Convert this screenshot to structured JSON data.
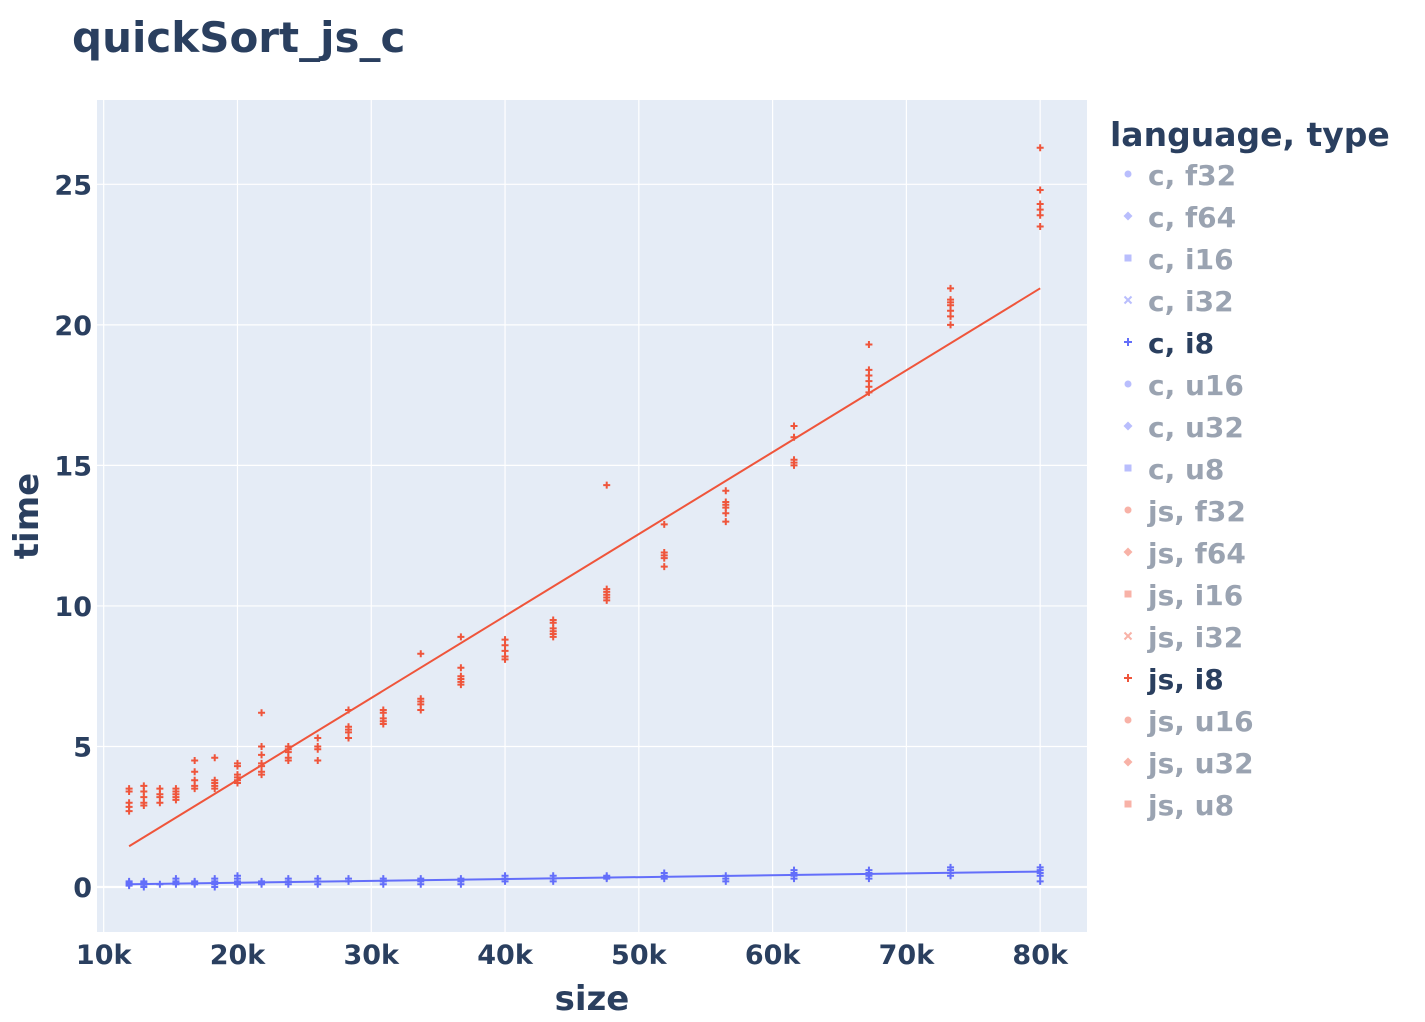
{
  "chart_data": {
    "type": "scatter",
    "title": "quickSort_js_c",
    "xlabel": "size",
    "ylabel": "time",
    "xlim": [
      9500,
      83500
    ],
    "ylim": [
      -1.6,
      28
    ],
    "x_ticks": [
      {
        "value": 10000,
        "label": "10k"
      },
      {
        "value": 20000,
        "label": "20k"
      },
      {
        "value": 30000,
        "label": "30k"
      },
      {
        "value": 40000,
        "label": "40k"
      },
      {
        "value": 50000,
        "label": "50k"
      },
      {
        "value": 60000,
        "label": "60k"
      },
      {
        "value": 70000,
        "label": "70k"
      },
      {
        "value": 80000,
        "label": "80k"
      }
    ],
    "y_ticks": [
      {
        "value": 0,
        "label": "0"
      },
      {
        "value": 5,
        "label": "5"
      },
      {
        "value": 10,
        "label": "10"
      },
      {
        "value": 15,
        "label": "15"
      },
      {
        "value": 20,
        "label": "20"
      },
      {
        "value": 25,
        "label": "25"
      }
    ],
    "grid": true,
    "legend": {
      "title": "language, type",
      "position": "right",
      "items": [
        {
          "label": "c, f32",
          "color": "#636efa",
          "symbol": "circle",
          "active": false
        },
        {
          "label": "c, f64",
          "color": "#636efa",
          "symbol": "diamond",
          "active": false
        },
        {
          "label": "c, i16",
          "color": "#636efa",
          "symbol": "square",
          "active": false
        },
        {
          "label": "c, i32",
          "color": "#636efa",
          "symbol": "x",
          "active": false
        },
        {
          "label": "c, i8",
          "color": "#636efa",
          "symbol": "cross",
          "active": true
        },
        {
          "label": "c, u16",
          "color": "#636efa",
          "symbol": "circle",
          "active": false
        },
        {
          "label": "c, u32",
          "color": "#636efa",
          "symbol": "diamond",
          "active": false
        },
        {
          "label": "c, u8",
          "color": "#636efa",
          "symbol": "square",
          "active": false
        },
        {
          "label": "js, f32",
          "color": "#ef553b",
          "symbol": "circle",
          "active": false
        },
        {
          "label": "js, f64",
          "color": "#ef553b",
          "symbol": "diamond",
          "active": false
        },
        {
          "label": "js, i16",
          "color": "#ef553b",
          "symbol": "square",
          "active": false
        },
        {
          "label": "js, i32",
          "color": "#ef553b",
          "symbol": "x",
          "active": false
        },
        {
          "label": "js, i8",
          "color": "#ef553b",
          "symbol": "cross",
          "active": true
        },
        {
          "label": "js, u16",
          "color": "#ef553b",
          "symbol": "circle",
          "active": false
        },
        {
          "label": "js, u32",
          "color": "#ef553b",
          "symbol": "diamond",
          "active": false
        },
        {
          "label": "js, u8",
          "color": "#ef553b",
          "symbol": "square",
          "active": false
        }
      ]
    },
    "series": [
      {
        "name": "c, i8",
        "color": "#636efa",
        "symbol": "cross",
        "points": [
          [
            11900,
            0.05
          ],
          [
            11900,
            0.1
          ],
          [
            11900,
            0.15
          ],
          [
            11900,
            0.2
          ],
          [
            13000,
            0.0
          ],
          [
            13000,
            0.08
          ],
          [
            13000,
            0.15
          ],
          [
            13000,
            0.2
          ],
          [
            14200,
            0.1
          ],
          [
            15400,
            0.1
          ],
          [
            15400,
            0.15
          ],
          [
            15400,
            0.2
          ],
          [
            15400,
            0.3
          ],
          [
            16800,
            0.1
          ],
          [
            16800,
            0.15
          ],
          [
            16800,
            0.2
          ],
          [
            18300,
            0.0
          ],
          [
            18300,
            0.1
          ],
          [
            18300,
            0.2
          ],
          [
            18300,
            0.3
          ],
          [
            20000,
            0.1
          ],
          [
            20000,
            0.2
          ],
          [
            20000,
            0.3
          ],
          [
            20000,
            0.4
          ],
          [
            21800,
            0.1
          ],
          [
            21800,
            0.15
          ],
          [
            21800,
            0.2
          ],
          [
            23800,
            0.1
          ],
          [
            23800,
            0.2
          ],
          [
            23800,
            0.3
          ],
          [
            26000,
            0.1
          ],
          [
            26000,
            0.2
          ],
          [
            26000,
            0.3
          ],
          [
            28300,
            0.2
          ],
          [
            28300,
            0.3
          ],
          [
            30900,
            0.1
          ],
          [
            30900,
            0.2
          ],
          [
            30900,
            0.3
          ],
          [
            33700,
            0.1
          ],
          [
            33700,
            0.2
          ],
          [
            33700,
            0.3
          ],
          [
            36700,
            0.1
          ],
          [
            36700,
            0.2
          ],
          [
            36700,
            0.3
          ],
          [
            40000,
            0.2
          ],
          [
            40000,
            0.3
          ],
          [
            40000,
            0.4
          ],
          [
            43600,
            0.2
          ],
          [
            43600,
            0.3
          ],
          [
            43600,
            0.4
          ],
          [
            47600,
            0.3
          ],
          [
            47600,
            0.35
          ],
          [
            47600,
            0.4
          ],
          [
            51900,
            0.3
          ],
          [
            51900,
            0.4
          ],
          [
            51900,
            0.5
          ],
          [
            56500,
            0.2
          ],
          [
            56500,
            0.3
          ],
          [
            56500,
            0.4
          ],
          [
            61600,
            0.3
          ],
          [
            61600,
            0.4
          ],
          [
            61600,
            0.5
          ],
          [
            61600,
            0.6
          ],
          [
            67200,
            0.3
          ],
          [
            67200,
            0.4
          ],
          [
            67200,
            0.5
          ],
          [
            67200,
            0.6
          ],
          [
            73300,
            0.4
          ],
          [
            73300,
            0.5
          ],
          [
            73300,
            0.6
          ],
          [
            73300,
            0.7
          ],
          [
            80000,
            0.2
          ],
          [
            80000,
            0.4
          ],
          [
            80000,
            0.5
          ],
          [
            80000,
            0.6
          ],
          [
            80000,
            0.7
          ]
        ],
        "trend": [
          [
            11900,
            0.1
          ],
          [
            80000,
            0.55
          ]
        ]
      },
      {
        "name": "js, i8",
        "color": "#ef553b",
        "symbol": "cross",
        "points": [
          [
            11900,
            2.7
          ],
          [
            11900,
            2.85
          ],
          [
            11900,
            3.0
          ],
          [
            11900,
            3.4
          ],
          [
            11900,
            3.5
          ],
          [
            13000,
            2.9
          ],
          [
            13000,
            3.0
          ],
          [
            13000,
            3.2
          ],
          [
            13000,
            3.4
          ],
          [
            13000,
            3.6
          ],
          [
            14200,
            3.0
          ],
          [
            14200,
            3.2
          ],
          [
            14200,
            3.3
          ],
          [
            14200,
            3.5
          ],
          [
            15400,
            3.1
          ],
          [
            15400,
            3.2
          ],
          [
            15400,
            3.3
          ],
          [
            15400,
            3.4
          ],
          [
            15400,
            3.5
          ],
          [
            16800,
            3.5
          ],
          [
            16800,
            3.6
          ],
          [
            16800,
            3.8
          ],
          [
            16800,
            4.1
          ],
          [
            16800,
            4.5
          ],
          [
            18300,
            3.5
          ],
          [
            18300,
            3.6
          ],
          [
            18300,
            3.7
          ],
          [
            18300,
            3.8
          ],
          [
            18300,
            4.6
          ],
          [
            20000,
            3.7
          ],
          [
            20000,
            3.8
          ],
          [
            20000,
            3.9
          ],
          [
            20000,
            4.0
          ],
          [
            20000,
            4.3
          ],
          [
            20000,
            4.4
          ],
          [
            21800,
            4.0
          ],
          [
            21800,
            4.1
          ],
          [
            21800,
            4.3
          ],
          [
            21800,
            4.4
          ],
          [
            21800,
            4.7
          ],
          [
            21800,
            5.0
          ],
          [
            21800,
            6.2
          ],
          [
            23800,
            4.5
          ],
          [
            23800,
            4.6
          ],
          [
            23800,
            4.8
          ],
          [
            23800,
            4.9
          ],
          [
            23800,
            5.0
          ],
          [
            26000,
            4.5
          ],
          [
            26000,
            4.9
          ],
          [
            26000,
            5.0
          ],
          [
            26000,
            5.3
          ],
          [
            28300,
            5.3
          ],
          [
            28300,
            5.5
          ],
          [
            28300,
            5.6
          ],
          [
            28300,
            5.7
          ],
          [
            28300,
            6.3
          ],
          [
            30900,
            5.8
          ],
          [
            30900,
            5.9
          ],
          [
            30900,
            6.0
          ],
          [
            30900,
            6.2
          ],
          [
            30900,
            6.3
          ],
          [
            33700,
            6.3
          ],
          [
            33700,
            6.5
          ],
          [
            33700,
            6.6
          ],
          [
            33700,
            6.7
          ],
          [
            33700,
            8.3
          ],
          [
            36700,
            7.2
          ],
          [
            36700,
            7.3
          ],
          [
            36700,
            7.4
          ],
          [
            36700,
            7.5
          ],
          [
            36700,
            7.8
          ],
          [
            36700,
            8.9
          ],
          [
            40000,
            8.1
          ],
          [
            40000,
            8.2
          ],
          [
            40000,
            8.4
          ],
          [
            40000,
            8.6
          ],
          [
            40000,
            8.8
          ],
          [
            43600,
            8.9
          ],
          [
            43600,
            9.0
          ],
          [
            43600,
            9.1
          ],
          [
            43600,
            9.2
          ],
          [
            43600,
            9.4
          ],
          [
            43600,
            9.5
          ],
          [
            47600,
            10.2
          ],
          [
            47600,
            10.3
          ],
          [
            47600,
            10.4
          ],
          [
            47600,
            10.5
          ],
          [
            47600,
            10.6
          ],
          [
            47600,
            14.3
          ],
          [
            51900,
            11.4
          ],
          [
            51900,
            11.7
          ],
          [
            51900,
            11.8
          ],
          [
            51900,
            11.9
          ],
          [
            51900,
            12.9
          ],
          [
            56500,
            13.0
          ],
          [
            56500,
            13.3
          ],
          [
            56500,
            13.5
          ],
          [
            56500,
            13.6
          ],
          [
            56500,
            13.7
          ],
          [
            56500,
            14.1
          ],
          [
            61600,
            15.0
          ],
          [
            61600,
            15.1
          ],
          [
            61600,
            15.2
          ],
          [
            61600,
            16.0
          ],
          [
            61600,
            16.4
          ],
          [
            67200,
            17.6
          ],
          [
            67200,
            17.8
          ],
          [
            67200,
            18.0
          ],
          [
            67200,
            18.2
          ],
          [
            67200,
            18.4
          ],
          [
            67200,
            19.3
          ],
          [
            73300,
            20.0
          ],
          [
            73300,
            20.3
          ],
          [
            73300,
            20.5
          ],
          [
            73300,
            20.7
          ],
          [
            73300,
            20.8
          ],
          [
            73300,
            20.9
          ],
          [
            73300,
            21.3
          ],
          [
            80000,
            23.5
          ],
          [
            80000,
            23.9
          ],
          [
            80000,
            24.1
          ],
          [
            80000,
            24.3
          ],
          [
            80000,
            24.8
          ],
          [
            80000,
            26.3
          ]
        ],
        "trend": [
          [
            11900,
            1.45
          ],
          [
            80000,
            21.3
          ]
        ]
      }
    ]
  }
}
